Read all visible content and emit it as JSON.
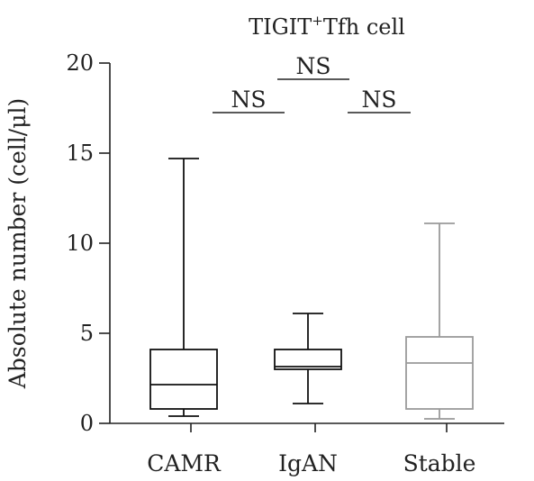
{
  "chart_data": {
    "type": "box",
    "title": "TIGIT⁺Tfh cell",
    "title_main": "TIGIT",
    "title_sup": "+",
    "title_rest": "Tfh cell",
    "xlabel": "",
    "ylabel": "Absolute number (cell/μl)",
    "ylim": [
      0,
      20
    ],
    "yticks": [
      0,
      5,
      10,
      15,
      20
    ],
    "categories": [
      "CAMR",
      "IgAN",
      "Stable"
    ],
    "boxes": [
      {
        "category": "CAMR",
        "min": 0.4,
        "q1": 0.8,
        "median": 2.15,
        "q3": 4.1,
        "max": 14.7,
        "color": "#111111"
      },
      {
        "category": "IgAN",
        "min": 1.1,
        "q1": 3.0,
        "median": 3.15,
        "q3": 4.1,
        "max": 6.1,
        "color": "#111111"
      },
      {
        "category": "Stable",
        "min": 0.25,
        "q1": 0.8,
        "median": 3.35,
        "q3": 4.8,
        "max": 11.1,
        "color": "#9a9a9a"
      }
    ],
    "comparisons": [
      {
        "from": 0,
        "to": 1,
        "label": "NS",
        "level": 0
      },
      {
        "from": 1,
        "to": 2,
        "label": "NS",
        "level": 0
      },
      {
        "from": 0,
        "to": 2,
        "label": "NS",
        "level": 1
      }
    ],
    "grid": false,
    "legend": "none"
  }
}
